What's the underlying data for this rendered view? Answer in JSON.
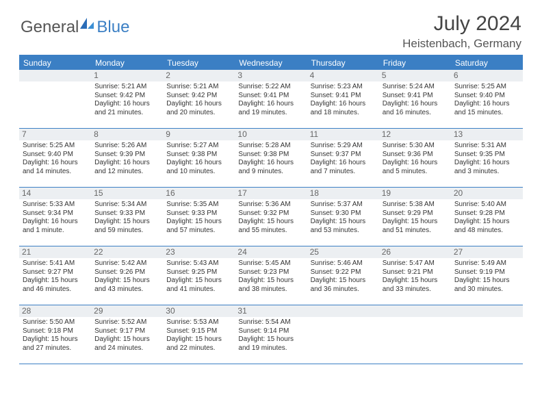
{
  "logo": {
    "text_general": "General",
    "text_blue": "Blue"
  },
  "title": "July 2024",
  "location": "Heistenbach, Germany",
  "colors": {
    "header_bg": "#3b7fc4",
    "header_text": "#ffffff",
    "border": "#3b7fc4",
    "daynum_bg": "#eceff2",
    "text": "#333333",
    "background": "#ffffff"
  },
  "dow": [
    "Sunday",
    "Monday",
    "Tuesday",
    "Wednesday",
    "Thursday",
    "Friday",
    "Saturday"
  ],
  "start_offset": 1,
  "days": [
    {
      "n": 1,
      "sr": "5:21 AM",
      "ss": "9:42 PM",
      "dl": "16 hours and 21 minutes."
    },
    {
      "n": 2,
      "sr": "5:21 AM",
      "ss": "9:42 PM",
      "dl": "16 hours and 20 minutes."
    },
    {
      "n": 3,
      "sr": "5:22 AM",
      "ss": "9:41 PM",
      "dl": "16 hours and 19 minutes."
    },
    {
      "n": 4,
      "sr": "5:23 AM",
      "ss": "9:41 PM",
      "dl": "16 hours and 18 minutes."
    },
    {
      "n": 5,
      "sr": "5:24 AM",
      "ss": "9:41 PM",
      "dl": "16 hours and 16 minutes."
    },
    {
      "n": 6,
      "sr": "5:25 AM",
      "ss": "9:40 PM",
      "dl": "16 hours and 15 minutes."
    },
    {
      "n": 7,
      "sr": "5:25 AM",
      "ss": "9:40 PM",
      "dl": "16 hours and 14 minutes."
    },
    {
      "n": 8,
      "sr": "5:26 AM",
      "ss": "9:39 PM",
      "dl": "16 hours and 12 minutes."
    },
    {
      "n": 9,
      "sr": "5:27 AM",
      "ss": "9:38 PM",
      "dl": "16 hours and 10 minutes."
    },
    {
      "n": 10,
      "sr": "5:28 AM",
      "ss": "9:38 PM",
      "dl": "16 hours and 9 minutes."
    },
    {
      "n": 11,
      "sr": "5:29 AM",
      "ss": "9:37 PM",
      "dl": "16 hours and 7 minutes."
    },
    {
      "n": 12,
      "sr": "5:30 AM",
      "ss": "9:36 PM",
      "dl": "16 hours and 5 minutes."
    },
    {
      "n": 13,
      "sr": "5:31 AM",
      "ss": "9:35 PM",
      "dl": "16 hours and 3 minutes."
    },
    {
      "n": 14,
      "sr": "5:33 AM",
      "ss": "9:34 PM",
      "dl": "16 hours and 1 minute."
    },
    {
      "n": 15,
      "sr": "5:34 AM",
      "ss": "9:33 PM",
      "dl": "15 hours and 59 minutes."
    },
    {
      "n": 16,
      "sr": "5:35 AM",
      "ss": "9:33 PM",
      "dl": "15 hours and 57 minutes."
    },
    {
      "n": 17,
      "sr": "5:36 AM",
      "ss": "9:32 PM",
      "dl": "15 hours and 55 minutes."
    },
    {
      "n": 18,
      "sr": "5:37 AM",
      "ss": "9:30 PM",
      "dl": "15 hours and 53 minutes."
    },
    {
      "n": 19,
      "sr": "5:38 AM",
      "ss": "9:29 PM",
      "dl": "15 hours and 51 minutes."
    },
    {
      "n": 20,
      "sr": "5:40 AM",
      "ss": "9:28 PM",
      "dl": "15 hours and 48 minutes."
    },
    {
      "n": 21,
      "sr": "5:41 AM",
      "ss": "9:27 PM",
      "dl": "15 hours and 46 minutes."
    },
    {
      "n": 22,
      "sr": "5:42 AM",
      "ss": "9:26 PM",
      "dl": "15 hours and 43 minutes."
    },
    {
      "n": 23,
      "sr": "5:43 AM",
      "ss": "9:25 PM",
      "dl": "15 hours and 41 minutes."
    },
    {
      "n": 24,
      "sr": "5:45 AM",
      "ss": "9:23 PM",
      "dl": "15 hours and 38 minutes."
    },
    {
      "n": 25,
      "sr": "5:46 AM",
      "ss": "9:22 PM",
      "dl": "15 hours and 36 minutes."
    },
    {
      "n": 26,
      "sr": "5:47 AM",
      "ss": "9:21 PM",
      "dl": "15 hours and 33 minutes."
    },
    {
      "n": 27,
      "sr": "5:49 AM",
      "ss": "9:19 PM",
      "dl": "15 hours and 30 minutes."
    },
    {
      "n": 28,
      "sr": "5:50 AM",
      "ss": "9:18 PM",
      "dl": "15 hours and 27 minutes."
    },
    {
      "n": 29,
      "sr": "5:52 AM",
      "ss": "9:17 PM",
      "dl": "15 hours and 24 minutes."
    },
    {
      "n": 30,
      "sr": "5:53 AM",
      "ss": "9:15 PM",
      "dl": "15 hours and 22 minutes."
    },
    {
      "n": 31,
      "sr": "5:54 AM",
      "ss": "9:14 PM",
      "dl": "15 hours and 19 minutes."
    }
  ],
  "labels": {
    "sunrise": "Sunrise:",
    "sunset": "Sunset:",
    "daylight": "Daylight:"
  }
}
